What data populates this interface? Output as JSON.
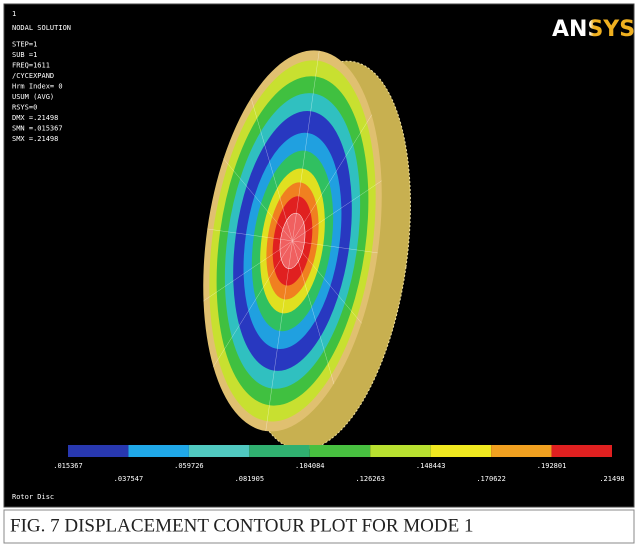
{
  "window_number": "1",
  "info_lines": [
    "NODAL SOLUTION",
    "STEP=1",
    "SUB =1",
    "FREQ=1611",
    "/CYCEXPAND",
    "Hrm Index=    0",
    "USUM     (AVG)",
    "RSYS=0",
    "DMX =.21498",
    "SMN =.015367",
    "SMX =.21498"
  ],
  "logo": "ANSYS",
  "legend": {
    "colors": [
      "#2838b0",
      "#20a8e8",
      "#50c8c0",
      "#30b070",
      "#48c040",
      "#b8e030",
      "#f0e820",
      "#f0a020",
      "#e02020"
    ],
    "labels": [
      ".015367",
      ".037547",
      ".059726",
      ".081905",
      ".104084",
      ".126263",
      ".148443",
      ".170622",
      ".192801",
      ".21498"
    ]
  },
  "footer": "Rotor Disc",
  "caption": "FIG. 7    DISPLACEMENT CONTOUR PLOT FOR MODE 1"
}
